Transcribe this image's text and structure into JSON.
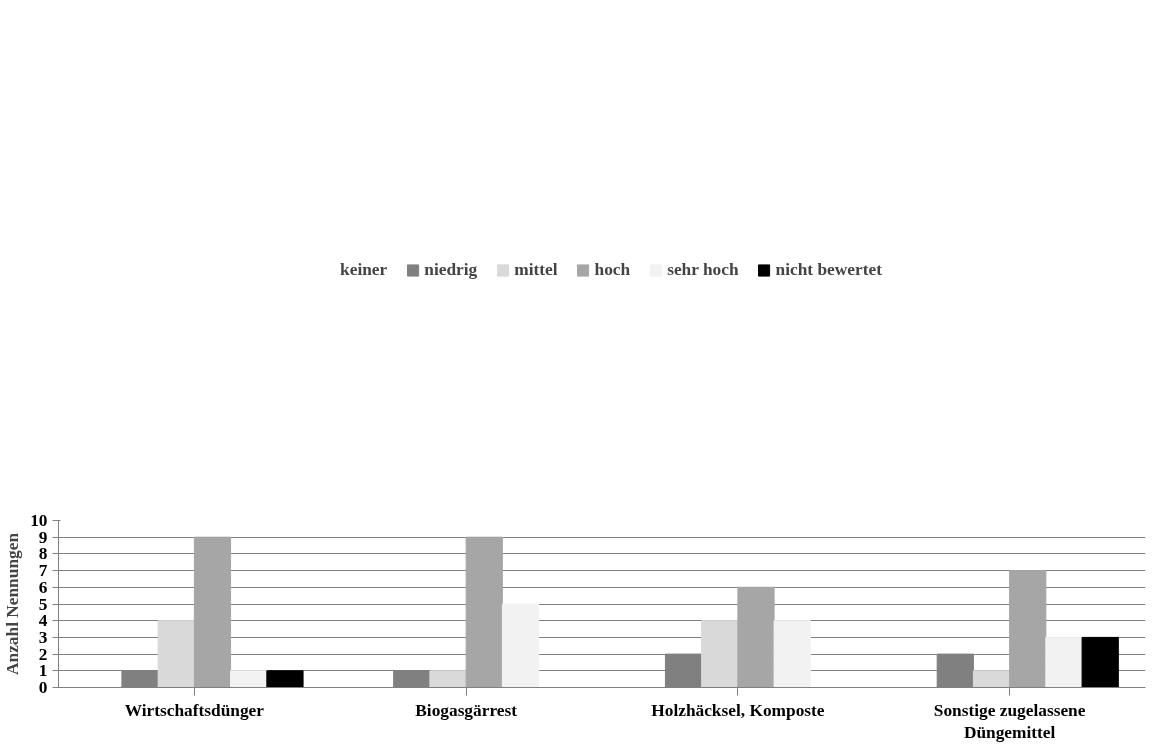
{
  "chart_data": {
    "type": "bar",
    "ylabel": "Anzahl Nennungen",
    "categories": [
      "Wirtschaftsdünger",
      "Biogasgärrest",
      "Holzhäcksel, Komposte",
      "Sonstige zugelassene\nDüngemittel"
    ],
    "series": [
      {
        "name": "keiner",
        "color": "#ffffff",
        "values": [
          0,
          0,
          0,
          0
        ]
      },
      {
        "name": "niedrig",
        "color": "#808080",
        "values": [
          1,
          1,
          2,
          2
        ]
      },
      {
        "name": "mittel",
        "color": "#d9d9d9",
        "values": [
          4,
          1,
          4,
          1
        ]
      },
      {
        "name": "hoch",
        "color": "#a6a6a6",
        "values": [
          9,
          9,
          6,
          7
        ]
      },
      {
        "name": "sehr hoch",
        "color": "#f2f2f2",
        "values": [
          1,
          5,
          4,
          3
        ]
      },
      {
        "name": "nicht bewertet",
        "color": "#000000",
        "values": [
          1,
          0,
          0,
          3
        ]
      }
    ],
    "ylim": [
      0,
      10
    ],
    "yticks": [
      0,
      1,
      2,
      3,
      4,
      5,
      6,
      7,
      8,
      9,
      10
    ],
    "grid": "y",
    "legend": "top"
  }
}
